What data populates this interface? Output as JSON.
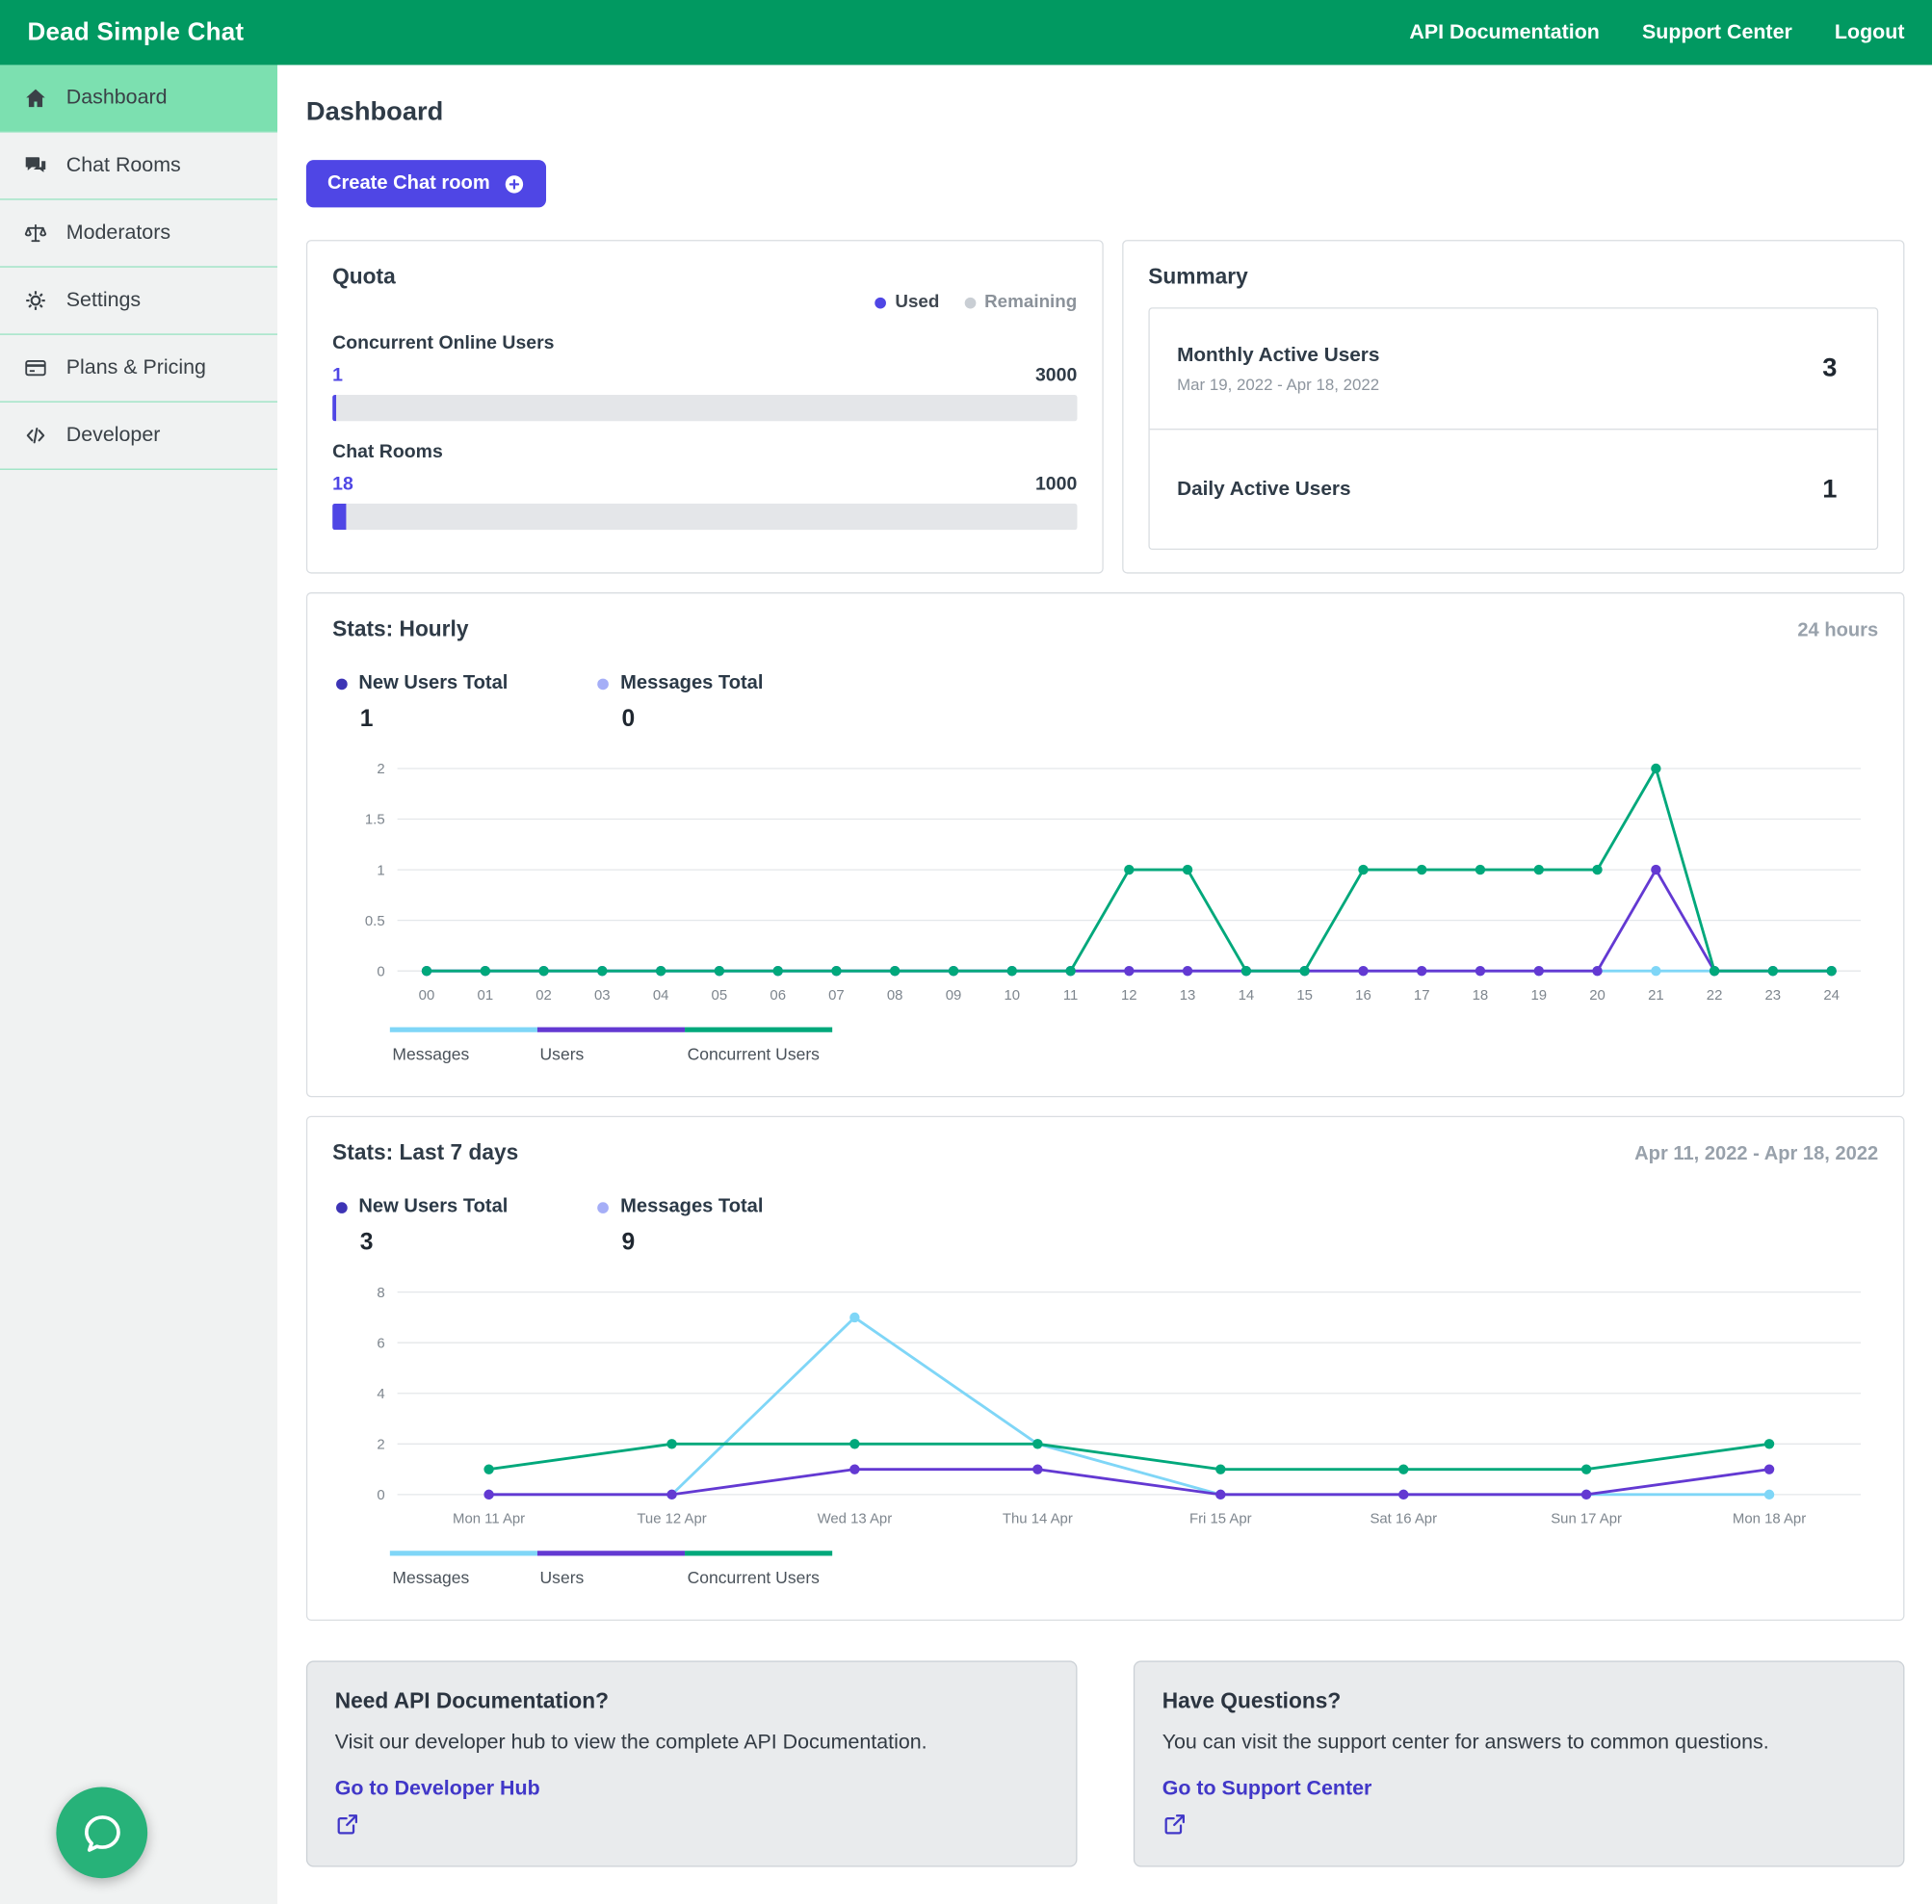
{
  "navbar": {
    "brand": "Dead Simple Chat",
    "links": [
      "API Documentation",
      "Support Center",
      "Logout"
    ]
  },
  "sidebar": {
    "items": [
      {
        "label": "Dashboard",
        "icon": "home",
        "active": true
      },
      {
        "label": "Chat Rooms",
        "icon": "chat-bubbles",
        "active": false
      },
      {
        "label": "Moderators",
        "icon": "balance-scale",
        "active": false
      },
      {
        "label": "Settings",
        "icon": "gear",
        "active": false
      },
      {
        "label": "Plans & Pricing",
        "icon": "credit-card",
        "active": false
      },
      {
        "label": "Developer",
        "icon": "code",
        "active": false
      }
    ]
  },
  "page": {
    "title": "Dashboard",
    "create_button": "Create Chat room"
  },
  "quota": {
    "title": "Quota",
    "legend": {
      "used": {
        "label": "Used",
        "color": "#4f46e5"
      },
      "remaining": {
        "label": "Remaining",
        "color": "#c9ced4"
      }
    },
    "items": [
      {
        "label": "Concurrent Online Users",
        "used": 1,
        "max": 3000
      },
      {
        "label": "Chat Rooms",
        "used": 18,
        "max": 1000
      }
    ]
  },
  "summary": {
    "title": "Summary",
    "rows": [
      {
        "label": "Monthly Active Users",
        "sublabel": "Mar 19, 2022 - Apr 18, 2022",
        "value": 3
      },
      {
        "label": "Daily Active Users",
        "sublabel": "",
        "value": 1
      }
    ]
  },
  "hourly": {
    "title": "Stats: Hourly",
    "range": "24 hours",
    "metrics": [
      {
        "label": "New Users Total",
        "value": 1,
        "color": "#3d34b5"
      },
      {
        "label": "Messages Total",
        "value": 0,
        "color": "#a5aef7"
      }
    ]
  },
  "weekly": {
    "title": "Stats: Last 7 days",
    "range": "Apr 11, 2022 - Apr 18, 2022",
    "metrics": [
      {
        "label": "New Users Total",
        "value": 3,
        "color": "#3d34b5"
      },
      {
        "label": "Messages Total",
        "value": 9,
        "color": "#a5aef7"
      }
    ]
  },
  "chart_data": {
    "hourly": {
      "type": "line",
      "title": "Stats: Hourly",
      "categories": [
        "00",
        "01",
        "02",
        "03",
        "04",
        "05",
        "06",
        "07",
        "08",
        "09",
        "10",
        "11",
        "12",
        "13",
        "14",
        "15",
        "16",
        "17",
        "18",
        "19",
        "20",
        "21",
        "22",
        "23",
        "24"
      ],
      "yticks": [
        0,
        0.5,
        1,
        1.5,
        2
      ],
      "ymax": 2,
      "grid": "horizontal",
      "legend_position": "bottom",
      "series": [
        {
          "name": "Messages",
          "color": "#7fd6f7",
          "values": [
            0,
            0,
            0,
            0,
            0,
            0,
            0,
            0,
            0,
            0,
            0,
            0,
            0,
            0,
            0,
            0,
            0,
            0,
            0,
            0,
            0,
            0,
            0,
            0,
            0
          ]
        },
        {
          "name": "Users",
          "color": "#6339d2",
          "values": [
            0,
            0,
            0,
            0,
            0,
            0,
            0,
            0,
            0,
            0,
            0,
            0,
            0,
            0,
            0,
            0,
            0,
            0,
            0,
            0,
            0,
            1,
            0,
            0,
            0
          ]
        },
        {
          "name": "Concurrent Users",
          "color": "#00a87b",
          "values": [
            0,
            0,
            0,
            0,
            0,
            0,
            0,
            0,
            0,
            0,
            0,
            0,
            1,
            1,
            0,
            0,
            1,
            1,
            1,
            1,
            1,
            2,
            0,
            0,
            0
          ]
        }
      ]
    },
    "weekly": {
      "type": "line",
      "title": "Stats: Last 7 days",
      "categories": [
        "Mon 11 Apr",
        "Tue 12 Apr",
        "Wed 13 Apr",
        "Thu 14 Apr",
        "Fri 15 Apr",
        "Sat 16 Apr",
        "Sun 17 Apr",
        "Mon 18 Apr"
      ],
      "yticks": [
        0,
        2,
        4,
        6,
        8
      ],
      "ymax": 8,
      "grid": "horizontal",
      "legend_position": "bottom",
      "series": [
        {
          "name": "Messages",
          "color": "#7fd6f7",
          "values": [
            0,
            0,
            7,
            2,
            0,
            0,
            0,
            0
          ]
        },
        {
          "name": "Users",
          "color": "#6339d2",
          "values": [
            0,
            0,
            1,
            1,
            0,
            0,
            0,
            1
          ]
        },
        {
          "name": "Concurrent Users",
          "color": "#00a87b",
          "values": [
            1,
            2,
            2,
            2,
            1,
            1,
            1,
            2
          ]
        }
      ]
    }
  },
  "info_cards": [
    {
      "title": "Need API Documentation?",
      "body": "Visit our developer hub to view the complete API Documentation.",
      "link": "Go to Developer Hub"
    },
    {
      "title": "Have Questions?",
      "body": "You can visit the support center for answers to common questions.",
      "link": "Go to Support Center"
    }
  ],
  "colors": {
    "brand_green": "#019961",
    "sidebar_active": "#7ce0b0",
    "accent_indigo": "#4f46e5",
    "link_indigo": "#4137c8",
    "series_messages": "#7fd6f7",
    "series_users": "#6339d2",
    "series_concurrent": "#00a87b"
  }
}
